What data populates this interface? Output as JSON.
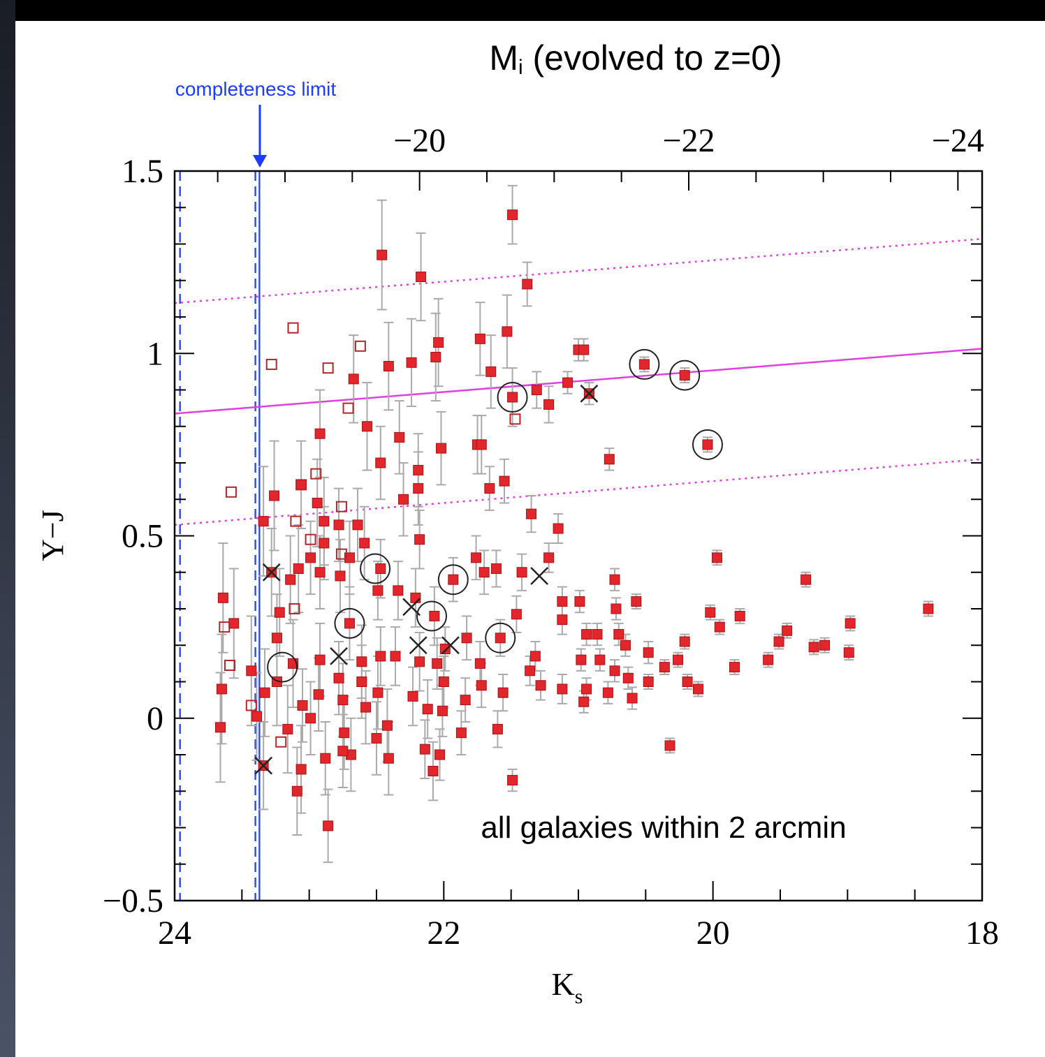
{
  "chart_data": {
    "type": "scatter",
    "x2label": {
      "main": "M",
      "sub": "i",
      "rest": " (evolved to z=0)"
    },
    "xlabel": {
      "main": "K",
      "sub": "s"
    },
    "ylabel": "Y−J",
    "annotations": [
      "completeness limit",
      "all galaxies within 2 arcmin"
    ],
    "xlim": [
      24,
      18
    ],
    "xticks": [
      24,
      22,
      20,
      18
    ],
    "xminorticks": [
      23.5,
      23,
      22.5,
      21.5,
      21,
      20.5,
      19.5,
      19,
      18.5
    ],
    "x2lim": [
      -18.18,
      -24.18
    ],
    "x2ticks": [
      {
        "value": -20,
        "label": "−20"
      },
      {
        "value": -22,
        "label": "−22"
      },
      {
        "value": -24,
        "label": "−24"
      }
    ],
    "x2minorticks": [
      -18.5,
      -19,
      -19.5,
      -20.5,
      -21,
      -21.5,
      -22.5,
      -23,
      -23.5
    ],
    "ylim": [
      -0.5,
      1.5
    ],
    "yticks": [
      {
        "value": -0.5,
        "label": "−0.5"
      },
      0,
      0.5,
      1,
      1.5
    ],
    "yminorticks": [
      -0.4,
      -0.3,
      -0.2,
      -0.1,
      0.1,
      0.2,
      0.3,
      0.4,
      0.6,
      0.7,
      0.8,
      0.9,
      1.1,
      1.2,
      1.3,
      1.4
    ],
    "series": [
      {
        "marker": "filled-square",
        "color": "#e3262b",
        "errcolor": "#aaaaaa",
        "x": [
          21.49,
          22.46,
          22.17,
          21.38,
          21.53,
          22.04,
          21.0,
          20.96,
          21.73,
          20.51,
          20.21,
          22.06,
          22.24,
          22.41,
          22.67,
          21.65,
          21.08,
          21.31,
          20.92,
          21.49,
          21.22,
          22.57,
          22.92,
          22.33,
          21.75,
          21.72,
          22.02,
          20.04,
          20.77,
          22.47,
          22.19,
          21.66,
          21.55,
          23.06,
          23.26,
          22.3,
          22.19,
          22.94,
          21.35,
          22.89,
          23.34,
          22.64,
          22.78,
          21.15,
          22.18,
          19.97,
          22.89,
          22.59,
          22.99,
          23.28,
          23.14,
          23.08,
          22.92,
          22.47,
          22.7,
          22.77,
          21.93,
          21.76,
          21.7,
          21.61,
          21.42,
          21.22,
          19.31,
          20.73,
          23.64,
          22.49,
          22.34,
          22.21,
          21.12,
          20.99,
          20.57,
          20.72,
          18.4,
          23.22,
          22.07,
          21.46,
          20.02,
          19.8,
          21.12,
          19.95,
          23.56,
          22.7,
          18.98,
          19.45,
          20.94,
          20.86,
          20.7,
          21.58,
          21.83,
          23.24,
          20.21,
          19.51,
          19.25,
          19.17,
          20.65,
          21.99,
          20.48,
          18.99,
          21.32,
          20.84,
          19.59,
          20.26,
          22.47,
          22.36,
          20.98,
          22.18,
          22.05,
          20.36,
          19.84,
          23.43,
          23.12,
          22.92,
          22.61,
          21.73,
          20.73,
          20.63,
          20.48,
          21.36,
          20.19,
          20.11,
          23.65,
          23.24,
          22.78,
          22.61,
          22.0,
          21.72,
          21.12,
          21.28,
          20.94,
          20.78,
          20.6,
          20.96,
          23.33,
          22.93,
          22.49,
          22.23,
          21.56,
          23.05,
          22.75,
          22.58,
          21.84,
          22.12,
          23.39,
          23.66,
          23.16,
          22.99,
          22.01,
          22.42,
          21.87,
          21.6,
          22.5,
          22.74,
          22.03,
          22.14,
          22.88,
          22.41,
          22.69,
          22.75,
          20.32,
          23.06,
          23.09,
          22.08,
          21.49,
          22.86,
          23.34
        ],
        "values": [
          1.38,
          1.27,
          1.21,
          1.19,
          1.06,
          1.03,
          1.01,
          1.01,
          1.04,
          0.97,
          0.94,
          0.99,
          0.975,
          0.965,
          0.93,
          0.95,
          0.92,
          0.9,
          0.89,
          0.88,
          0.86,
          0.8,
          0.78,
          0.77,
          0.75,
          0.75,
          0.74,
          0.75,
          0.71,
          0.7,
          0.68,
          0.63,
          0.65,
          0.64,
          0.61,
          0.6,
          0.63,
          0.59,
          0.56,
          0.54,
          0.54,
          0.53,
          0.53,
          0.52,
          0.49,
          0.44,
          0.48,
          0.48,
          0.44,
          0.4,
          0.38,
          0.41,
          0.4,
          0.41,
          0.44,
          0.39,
          0.38,
          0.44,
          0.4,
          0.41,
          0.4,
          0.44,
          0.38,
          0.38,
          0.33,
          0.35,
          0.35,
          0.33,
          0.32,
          0.32,
          0.32,
          0.3,
          0.3,
          0.29,
          0.28,
          0.285,
          0.29,
          0.28,
          0.27,
          0.25,
          0.26,
          0.26,
          0.26,
          0.24,
          0.23,
          0.23,
          0.23,
          0.22,
          0.22,
          0.22,
          0.21,
          0.21,
          0.195,
          0.2,
          0.2,
          0.19,
          0.18,
          0.18,
          0.17,
          0.16,
          0.16,
          0.16,
          0.17,
          0.17,
          0.16,
          0.155,
          0.15,
          0.14,
          0.14,
          0.13,
          0.15,
          0.16,
          0.155,
          0.15,
          0.13,
          0.11,
          0.1,
          0.13,
          0.1,
          0.08,
          0.08,
          0.1,
          0.11,
          0.1,
          0.1,
          0.09,
          0.08,
          0.09,
          0.08,
          0.07,
          0.055,
          0.045,
          0.07,
          0.065,
          0.07,
          0.06,
          0.07,
          0.035,
          0.05,
          0.03,
          0.05,
          0.025,
          0.005,
          -0.025,
          -0.03,
          0.0,
          0.02,
          -0.02,
          -0.04,
          -0.03,
          -0.055,
          -0.04,
          -0.1,
          -0.085,
          -0.11,
          -0.11,
          -0.1,
          -0.09,
          -0.075,
          -0.14,
          -0.2,
          -0.145,
          -0.17,
          -0.295,
          -0.13
        ],
        "yerr": [
          0.08,
          0.15,
          0.12,
          0.06,
          0.1,
          0.12,
          0.03,
          0.03,
          0.1,
          0.02,
          0.02,
          0.12,
          0.12,
          0.12,
          0.12,
          0.1,
          0.03,
          0.05,
          0.03,
          0.08,
          0.05,
          0.12,
          0.12,
          0.1,
          0.08,
          0.08,
          0.1,
          0.02,
          0.03,
          0.1,
          0.1,
          0.06,
          0.06,
          0.12,
          0.15,
          0.1,
          0.1,
          0.12,
          0.05,
          0.12,
          0.15,
          0.1,
          0.1,
          0.04,
          0.08,
          0.02,
          0.1,
          0.1,
          0.1,
          0.12,
          0.12,
          0.12,
          0.1,
          0.08,
          0.1,
          0.1,
          0.06,
          0.06,
          0.06,
          0.05,
          0.05,
          0.04,
          0.02,
          0.03,
          0.15,
          0.08,
          0.08,
          0.08,
          0.04,
          0.03,
          0.02,
          0.03,
          0.02,
          0.12,
          0.08,
          0.05,
          0.02,
          0.02,
          0.04,
          0.02,
          0.15,
          0.1,
          0.02,
          0.02,
          0.03,
          0.03,
          0.03,
          0.05,
          0.06,
          0.12,
          0.02,
          0.02,
          0.02,
          0.02,
          0.03,
          0.06,
          0.03,
          0.02,
          0.04,
          0.03,
          0.02,
          0.02,
          0.08,
          0.08,
          0.03,
          0.08,
          0.07,
          0.02,
          0.02,
          0.15,
          0.12,
          0.1,
          0.1,
          0.06,
          0.03,
          0.03,
          0.02,
          0.04,
          0.02,
          0.02,
          0.15,
          0.12,
          0.1,
          0.1,
          0.07,
          0.06,
          0.04,
          0.04,
          0.03,
          0.03,
          0.03,
          0.03,
          0.12,
          0.1,
          0.1,
          0.08,
          0.05,
          0.1,
          0.1,
          0.1,
          0.06,
          0.08,
          0.12,
          0.15,
          0.12,
          0.1,
          0.07,
          0.1,
          0.06,
          0.05,
          0.1,
          0.1,
          0.07,
          0.08,
          0.1,
          0.1,
          0.1,
          0.1,
          0.02,
          0.12,
          0.12,
          0.08,
          0.03,
          0.1,
          0.12
        ]
      },
      {
        "marker": "open-square",
        "color": "#b3262a",
        "x": [
          23.12,
          22.62,
          23.28,
          22.86,
          22.71,
          22.95,
          23.06,
          23.58,
          22.76,
          23.1,
          22.99,
          22.76,
          23.11,
          23.63,
          23.59,
          23.43,
          23.21,
          21.47
        ],
        "values": [
          1.07,
          1.02,
          0.97,
          0.96,
          0.85,
          0.67,
          0.64,
          0.62,
          0.58,
          0.54,
          0.49,
          0.45,
          0.3,
          0.25,
          0.145,
          0.035,
          -0.065,
          0.82
        ]
      },
      {
        "marker": "cross",
        "color": "#222222",
        "x": [
          23.28,
          22.78,
          22.24,
          22.19,
          21.95,
          21.29,
          20.92,
          23.34
        ],
        "values": [
          0.4,
          0.17,
          0.305,
          0.2,
          0.2,
          0.39,
          0.89,
          -0.13
        ]
      },
      {
        "marker": "circle",
        "color": "#222222",
        "x": [
          23.2,
          22.7,
          22.51,
          22.09,
          21.93,
          21.58,
          21.49,
          20.51,
          20.21,
          20.04
        ],
        "values": [
          0.14,
          0.26,
          0.41,
          0.28,
          0.38,
          0.22,
          0.88,
          0.97,
          0.94,
          0.75
        ]
      }
    ],
    "lines": [
      {
        "style": "solid",
        "color": "#e040e0",
        "x": [
          24,
          18
        ],
        "values": [
          0.835,
          1.013
        ]
      },
      {
        "style": "dotted",
        "color": "#e040e0",
        "x": [
          24,
          18
        ],
        "values": [
          1.138,
          1.314
        ]
      },
      {
        "style": "dotted",
        "color": "#e040e0",
        "x": [
          24,
          18
        ],
        "values": [
          0.53,
          0.71
        ]
      }
    ],
    "vlines": [
      {
        "style": "dashed",
        "color": "#3a4fd6",
        "x": 23.96
      },
      {
        "style": "dashed",
        "color": "#3a4fd6",
        "x": 23.4
      },
      {
        "style": "solid",
        "color": "#3a4fd6",
        "x": 23.37
      }
    ]
  }
}
